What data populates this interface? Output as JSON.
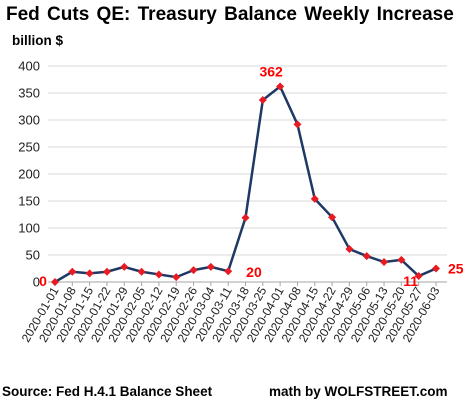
{
  "colors": {
    "line": "#1f3864",
    "marker": "#e81b23",
    "annotation": "#ff0000",
    "grid": "#d9d9d9"
  },
  "chart_data": {
    "type": "line",
    "title": "Fed Cuts QE: Treasury Balance Weekly Increase",
    "ylabel": "billion $",
    "source": "Source: Fed H.4.1 Balance Sheet",
    "credit": "math by WOLFSTREET.com",
    "ylim": [
      0,
      400
    ],
    "yticks": [
      0,
      50,
      100,
      150,
      200,
      250,
      300,
      350,
      400
    ],
    "grid": "horizontal",
    "legend": "none",
    "x": [
      "2020-01-01",
      "2020-01-08",
      "2020-01-15",
      "2020-01-22",
      "2020-01-29",
      "2020-02-05",
      "2020-02-12",
      "2020-02-19",
      "2020-02-26",
      "2020-03-04",
      "2020-03-11",
      "2020-03-18",
      "2020-03-25",
      "2020-04-01",
      "2020-04-08",
      "2020-04-15",
      "2020-04-22",
      "2020-04-29",
      "2020-05-06",
      "2020-05-13",
      "2020-05-20",
      "2020-05-27",
      "2020-06-03"
    ],
    "series": [
      {
        "values": [
          0,
          19,
          16,
          19,
          28,
          19,
          14,
          9,
          22,
          28,
          20,
          119,
          337,
          362,
          292,
          154,
          120,
          61,
          48,
          37,
          41,
          11,
          25
        ]
      }
    ],
    "annotations": [
      {
        "index": 0,
        "text": "0"
      },
      {
        "index": 10,
        "text": "20"
      },
      {
        "index": 13,
        "text": "362"
      },
      {
        "index": 21,
        "text": "11"
      },
      {
        "index": 22,
        "text": "25"
      }
    ]
  }
}
